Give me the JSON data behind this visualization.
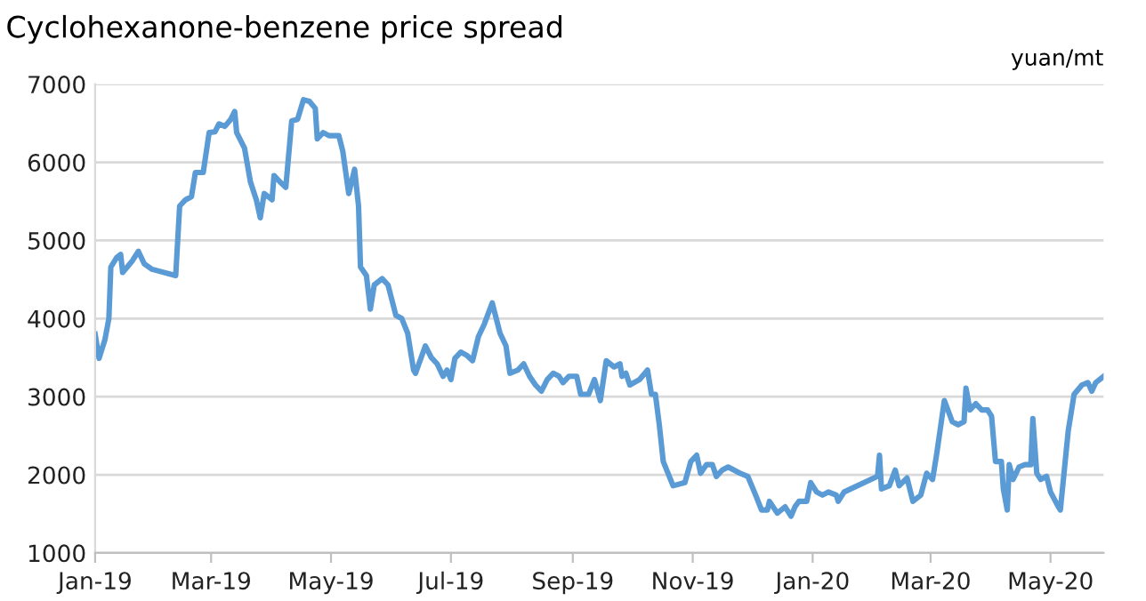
{
  "chart_data": {
    "type": "line",
    "title": "Cyclohexanone-benzene price spread",
    "ylabel": "yuan/mt",
    "x": [
      "2019-01-01",
      "2019-01-03",
      "2019-01-06",
      "2019-01-08",
      "2019-01-09",
      "2019-01-12",
      "2019-01-14",
      "2019-01-15",
      "2019-01-20",
      "2019-01-23",
      "2019-01-26",
      "2019-01-30",
      "2019-02-11",
      "2019-02-13",
      "2019-02-16",
      "2019-02-19",
      "2019-02-21",
      "2019-02-25",
      "2019-02-28",
      "2019-03-03",
      "2019-03-05",
      "2019-03-08",
      "2019-03-11",
      "2019-03-13",
      "2019-03-14",
      "2019-03-18",
      "2019-03-21",
      "2019-03-24",
      "2019-03-26",
      "2019-03-28",
      "2019-04-01",
      "2019-04-02",
      "2019-04-05",
      "2019-04-08",
      "2019-04-11",
      "2019-04-14",
      "2019-04-17",
      "2019-04-20",
      "2019-04-23",
      "2019-04-24",
      "2019-04-27",
      "2019-04-30",
      "2019-05-05",
      "2019-05-07",
      "2019-05-10",
      "2019-05-13",
      "2019-05-15",
      "2019-05-16",
      "2019-05-19",
      "2019-05-21",
      "2019-05-23",
      "2019-05-27",
      "2019-05-30",
      "2019-06-03",
      "2019-06-06",
      "2019-06-09",
      "2019-06-12",
      "2019-06-13",
      "2019-06-18",
      "2019-06-21",
      "2019-06-24",
      "2019-06-27",
      "2019-06-29",
      "2019-07-01",
      "2019-07-03",
      "2019-07-06",
      "2019-07-09",
      "2019-07-12",
      "2019-07-15",
      "2019-07-18",
      "2019-07-22",
      "2019-07-26",
      "2019-07-29",
      "2019-07-31",
      "2019-08-04",
      "2019-08-07",
      "2019-08-10",
      "2019-08-13",
      "2019-08-16",
      "2019-08-19",
      "2019-08-22",
      "2019-08-25",
      "2019-08-27",
      "2019-08-30",
      "2019-09-03",
      "2019-09-05",
      "2019-09-09",
      "2019-09-12",
      "2019-09-15",
      "2019-09-18",
      "2019-09-22",
      "2019-09-25",
      "2019-09-26",
      "2019-09-28",
      "2019-09-30",
      "2019-10-05",
      "2019-10-09",
      "2019-10-11",
      "2019-10-13",
      "2019-10-15",
      "2019-10-17",
      "2019-10-22",
      "2019-10-28",
      "2019-10-31",
      "2019-11-03",
      "2019-11-05",
      "2019-11-08",
      "2019-11-11",
      "2019-11-13",
      "2019-11-16",
      "2019-11-19",
      "2019-11-25",
      "2019-11-29",
      "2019-12-03",
      "2019-12-06",
      "2019-12-09",
      "2019-12-10",
      "2019-12-14",
      "2019-12-18",
      "2019-12-21",
      "2019-12-23",
      "2019-12-25",
      "2019-12-29",
      "2019-12-31",
      "2020-01-03",
      "2020-01-06",
      "2020-01-09",
      "2020-01-13",
      "2020-01-14",
      "2020-01-17",
      "2020-02-03",
      "2020-02-04",
      "2020-02-05",
      "2020-02-09",
      "2020-02-12",
      "2020-02-14",
      "2020-02-18",
      "2020-02-21",
      "2020-02-25",
      "2020-02-28",
      "2020-03-02",
      "2020-03-04",
      "2020-03-08",
      "2020-03-12",
      "2020-03-15",
      "2020-03-18",
      "2020-03-19",
      "2020-03-21",
      "2020-03-24",
      "2020-03-27",
      "2020-03-30",
      "2020-04-01",
      "2020-04-03",
      "2020-04-06",
      "2020-04-07",
      "2020-04-09",
      "2020-04-10",
      "2020-04-12",
      "2020-04-15",
      "2020-04-18",
      "2020-04-21",
      "2020-04-22",
      "2020-04-24",
      "2020-04-26",
      "2020-04-29",
      "2020-05-01",
      "2020-05-05",
      "2020-05-06",
      "2020-05-10",
      "2020-05-13",
      "2020-05-17",
      "2020-05-20",
      "2020-05-22",
      "2020-05-24",
      "2020-05-28"
    ],
    "series": [
      {
        "color": "#5b9bd5",
        "values": [
          3800,
          3490,
          3730,
          4000,
          4660,
          4780,
          4820,
          4590,
          4740,
          4860,
          4700,
          4630,
          4550,
          5440,
          5520,
          5560,
          5870,
          5870,
          6380,
          6390,
          6490,
          6460,
          6550,
          6650,
          6380,
          6180,
          5750,
          5520,
          5290,
          5600,
          5520,
          5830,
          5750,
          5680,
          6530,
          6550,
          6800,
          6780,
          6690,
          6300,
          6380,
          6340,
          6340,
          6140,
          5600,
          5910,
          5440,
          4660,
          4550,
          4120,
          4430,
          4510,
          4430,
          4040,
          4000,
          3810,
          3340,
          3300,
          3650,
          3500,
          3420,
          3260,
          3340,
          3220,
          3490,
          3570,
          3530,
          3460,
          3770,
          3930,
          4200,
          3810,
          3650,
          3300,
          3340,
          3420,
          3260,
          3150,
          3070,
          3220,
          3300,
          3260,
          3180,
          3260,
          3260,
          3030,
          3030,
          3220,
          2950,
          3460,
          3380,
          3420,
          3260,
          3300,
          3150,
          3220,
          3340,
          3030,
          3030,
          2640,
          2170,
          1860,
          1900,
          2170,
          2250,
          2020,
          2130,
          2130,
          1980,
          2060,
          2100,
          2020,
          1980,
          1740,
          1550,
          1550,
          1660,
          1510,
          1590,
          1470,
          1590,
          1660,
          1660,
          1900,
          1780,
          1740,
          1780,
          1740,
          1660,
          1780,
          1980,
          2250,
          1820,
          1860,
          2060,
          1860,
          1960,
          1660,
          1740,
          2020,
          1940,
          2250,
          2950,
          2680,
          2640,
          2680,
          3110,
          2830,
          2910,
          2830,
          2830,
          2750,
          2170,
          2170,
          1820,
          1550,
          2130,
          1940,
          2100,
          2130,
          2130,
          2720,
          2020,
          1940,
          1980,
          1780,
          1590,
          1550,
          2560,
          3030,
          3150,
          3180,
          3070,
          3180,
          3260
        ]
      }
    ],
    "xlim": [
      "2019-01-01",
      "2020-05-28"
    ],
    "xticks": [
      {
        "value": "2019-01-01",
        "label": "Jan-19"
      },
      {
        "value": "2019-03-01",
        "label": "Mar-19"
      },
      {
        "value": "2019-05-01",
        "label": "May-19"
      },
      {
        "value": "2019-07-01",
        "label": "Jul-19"
      },
      {
        "value": "2019-09-01",
        "label": "Sep-19"
      },
      {
        "value": "2019-11-01",
        "label": "Nov-19"
      },
      {
        "value": "2020-01-01",
        "label": "Jan-20"
      },
      {
        "value": "2020-03-01",
        "label": "Mar-20"
      },
      {
        "value": "2020-05-01",
        "label": "May-20"
      }
    ],
    "ylim": [
      1000,
      7000
    ],
    "yticks": [
      1000,
      2000,
      3000,
      4000,
      5000,
      6000,
      7000
    ],
    "grid": "y",
    "marker": "none",
    "line_style": "solid"
  }
}
